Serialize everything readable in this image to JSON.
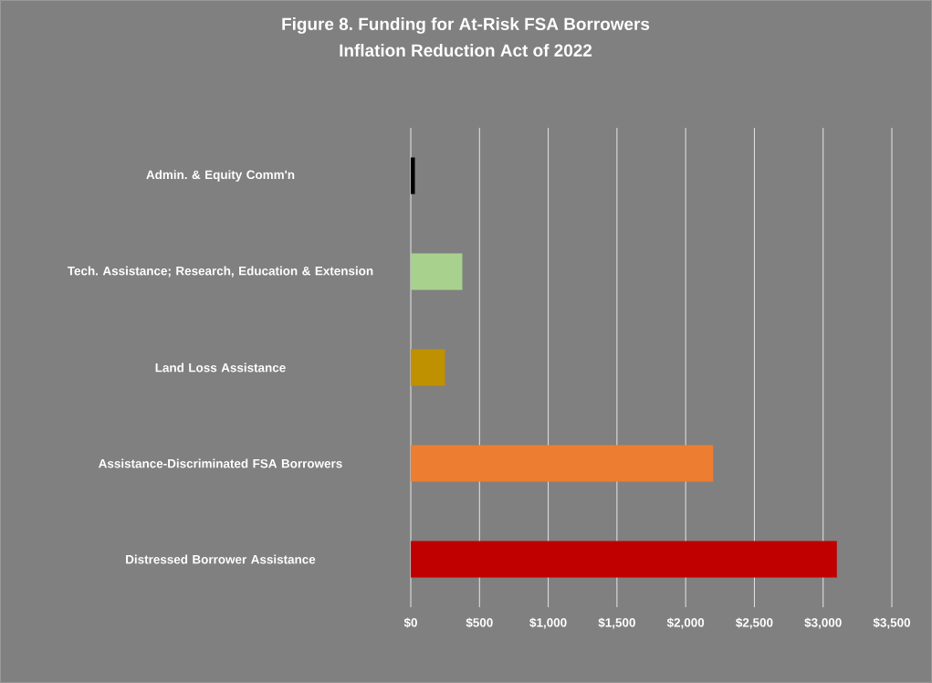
{
  "chart_data": {
    "type": "bar",
    "orientation": "horizontal",
    "title": "Figure 8. Funding for At-Risk FSA Borrowers",
    "subtitle": "Inflation Reduction Act of 2022",
    "categories": [
      "Admin. & Equity Comm'n",
      "Tech. Assistance; Research, Education & Extension",
      "Land Loss Assistance",
      "Assistance-Discriminated FSA Borrowers",
      "Distressed Borrower Assistance"
    ],
    "values": [
      30,
      375,
      250,
      2200,
      3100
    ],
    "colors": [
      "#000000",
      "#a9d18e",
      "#bf9000",
      "#ed7d31",
      "#c00000"
    ],
    "xlim": [
      0,
      3500
    ],
    "xticks": [
      {
        "value": 0,
        "label": "$0"
      },
      {
        "value": 500,
        "label": "$500"
      },
      {
        "value": 1000,
        "label": "$1,000"
      },
      {
        "value": 1500,
        "label": "$1,500"
      },
      {
        "value": 2000,
        "label": "$2,000"
      },
      {
        "value": 2500,
        "label": "$2,500"
      },
      {
        "value": 3000,
        "label": "$3,000"
      },
      {
        "value": 3500,
        "label": "$3,500"
      }
    ],
    "grid": "x"
  }
}
